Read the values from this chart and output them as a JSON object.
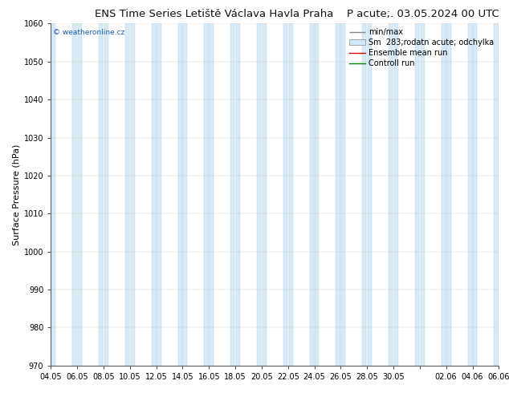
{
  "title_left": "ENS Time Series Letiště Václava Havla Praha",
  "title_right": "P acute;. 03.05.2024 00 UTC",
  "ylabel": "Surface Pressure (hPa)",
  "ylim": [
    970,
    1060
  ],
  "yticks": [
    970,
    980,
    990,
    1000,
    1010,
    1020,
    1030,
    1040,
    1050,
    1060
  ],
  "xtick_labels": [
    "04.05",
    "06.05",
    "08.05",
    "10.05",
    "12.05",
    "14.05",
    "16.05",
    "18.05",
    "20.05",
    "22.05",
    "24.05",
    "26.05",
    "28.05",
    "30.05",
    "",
    "02.06",
    "04.06",
    "06.06"
  ],
  "watermark": "© weatheronline.cz",
  "band_color": "#d6eaf8",
  "band_edge_color": "#b8d4ea",
  "background_color": "#ffffff",
  "plot_bg_color": "#ffffff",
  "title_fontsize": 9.5,
  "ylabel_fontsize": 8,
  "tick_fontsize": 7,
  "legend_fontsize": 7,
  "watermark_color": "#1a5fb4",
  "legend_line_color": "#888888",
  "legend_fill_color": "#d0e8f8",
  "ensemble_color": "#dd0000",
  "control_color": "#008800"
}
